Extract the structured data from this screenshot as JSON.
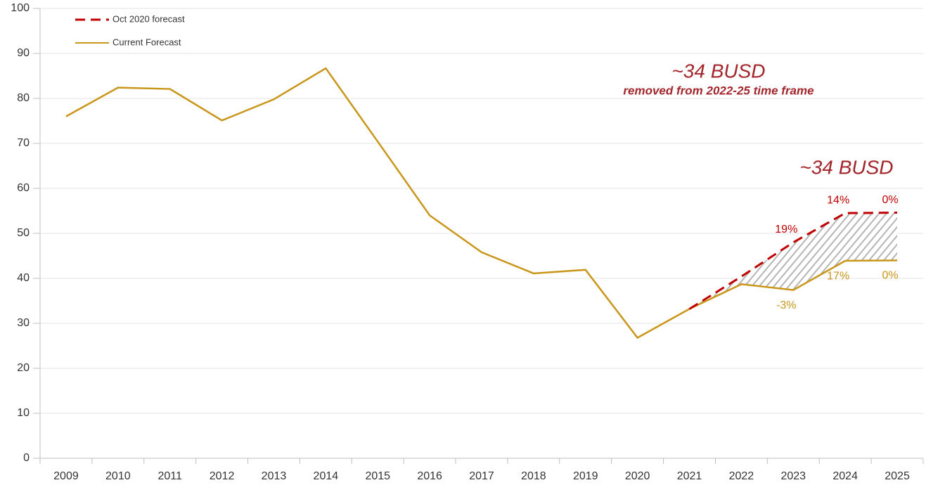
{
  "chart_data": {
    "type": "line",
    "categories": [
      "2009",
      "2010",
      "2011",
      "2012",
      "2013",
      "2014",
      "2015",
      "2016",
      "2017",
      "2018",
      "2019",
      "2020",
      "2021",
      "2022",
      "2023",
      "2024",
      "2025"
    ],
    "series": [
      {
        "name": "Oct 2020 forecast",
        "color": "#c00000",
        "dashed": true,
        "values": [
          null,
          null,
          null,
          null,
          null,
          null,
          null,
          null,
          null,
          null,
          null,
          null,
          33.2,
          40.4,
          48.0,
          54.5,
          54.6
        ],
        "labels": [
          null,
          null,
          null,
          null,
          null,
          null,
          null,
          null,
          null,
          null,
          null,
          null,
          null,
          null,
          "19%",
          "14%",
          "0%"
        ]
      },
      {
        "name": "Current Forecast",
        "color": "#c9961a",
        "dashed": false,
        "values": [
          76.0,
          82.4,
          82.1,
          75.1,
          79.8,
          86.7,
          70.4,
          54.0,
          45.8,
          41.1,
          41.9,
          26.8,
          33.2,
          38.7,
          37.4,
          43.9,
          44.0
        ],
        "labels": [
          null,
          null,
          null,
          null,
          null,
          null,
          null,
          null,
          null,
          null,
          null,
          null,
          null,
          null,
          "-3%",
          "17%",
          "0%"
        ]
      }
    ],
    "ylim": [
      0,
      100
    ],
    "yticks": [
      0,
      10,
      20,
      30,
      40,
      50,
      60,
      70,
      80,
      90,
      100
    ],
    "grid": true,
    "legend": "top-left",
    "annotations": [
      "~34 BUSD",
      "removed from 2022-25 time frame",
      "~34 BUSD"
    ]
  }
}
